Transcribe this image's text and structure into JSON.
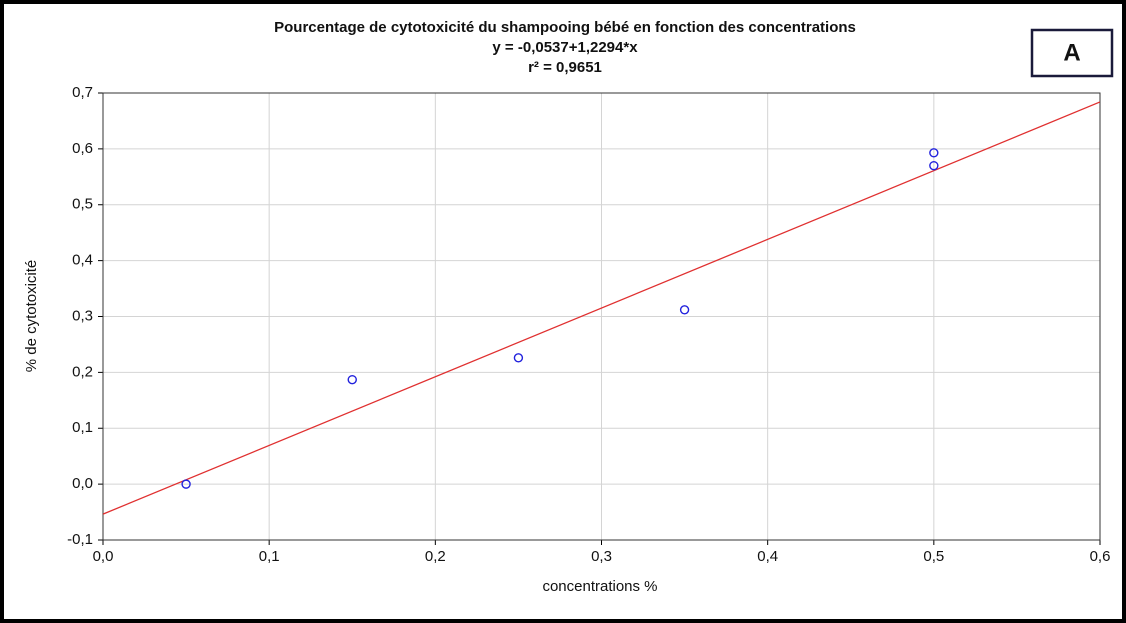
{
  "chart_data": {
    "type": "scatter",
    "title": "Pourcentage de cytotoxicité du shampooing bébé en fonction des concentrations",
    "subtitle": [
      "y = -0,0537+1,2294*x",
      "r² = 0,9651"
    ],
    "annotation": "A",
    "xlabel": "concentrations %",
    "ylabel": "% de cytotoxicité",
    "series": [
      {
        "name": "cytotoxicité",
        "color": "#2222dd",
        "x": [
          0.05,
          0.15,
          0.25,
          0.35,
          0.5,
          0.5
        ],
        "values": [
          0.0,
          0.187,
          0.226,
          0.312,
          0.593,
          0.57
        ]
      }
    ],
    "trendline": {
      "intercept": -0.0537,
      "slope": 1.2294,
      "color": "#e03030"
    },
    "xlim": [
      0,
      0.6
    ],
    "xticks": [
      {
        "value": 0,
        "label": "0,0"
      },
      {
        "value": 0.1,
        "label": "0,1"
      },
      {
        "value": 0.2,
        "label": "0,2"
      },
      {
        "value": 0.3,
        "label": "0,3"
      },
      {
        "value": 0.4,
        "label": "0,4"
      },
      {
        "value": 0.5,
        "label": "0,5"
      },
      {
        "value": 0.6,
        "label": "0,6"
      }
    ],
    "ylim": [
      -0.1,
      0.7
    ],
    "yticks": [
      {
        "value": -0.1,
        "label": "-0,1"
      },
      {
        "value": 0,
        "label": "0,0"
      },
      {
        "value": 0.1,
        "label": "0,1"
      },
      {
        "value": 0.2,
        "label": "0,2"
      },
      {
        "value": 0.3,
        "label": "0,3"
      },
      {
        "value": 0.4,
        "label": "0,4"
      },
      {
        "value": 0.5,
        "label": "0,5"
      },
      {
        "value": 0.6,
        "label": "0,6"
      },
      {
        "value": 0.7,
        "label": "0,7"
      }
    ],
    "grid": true
  }
}
